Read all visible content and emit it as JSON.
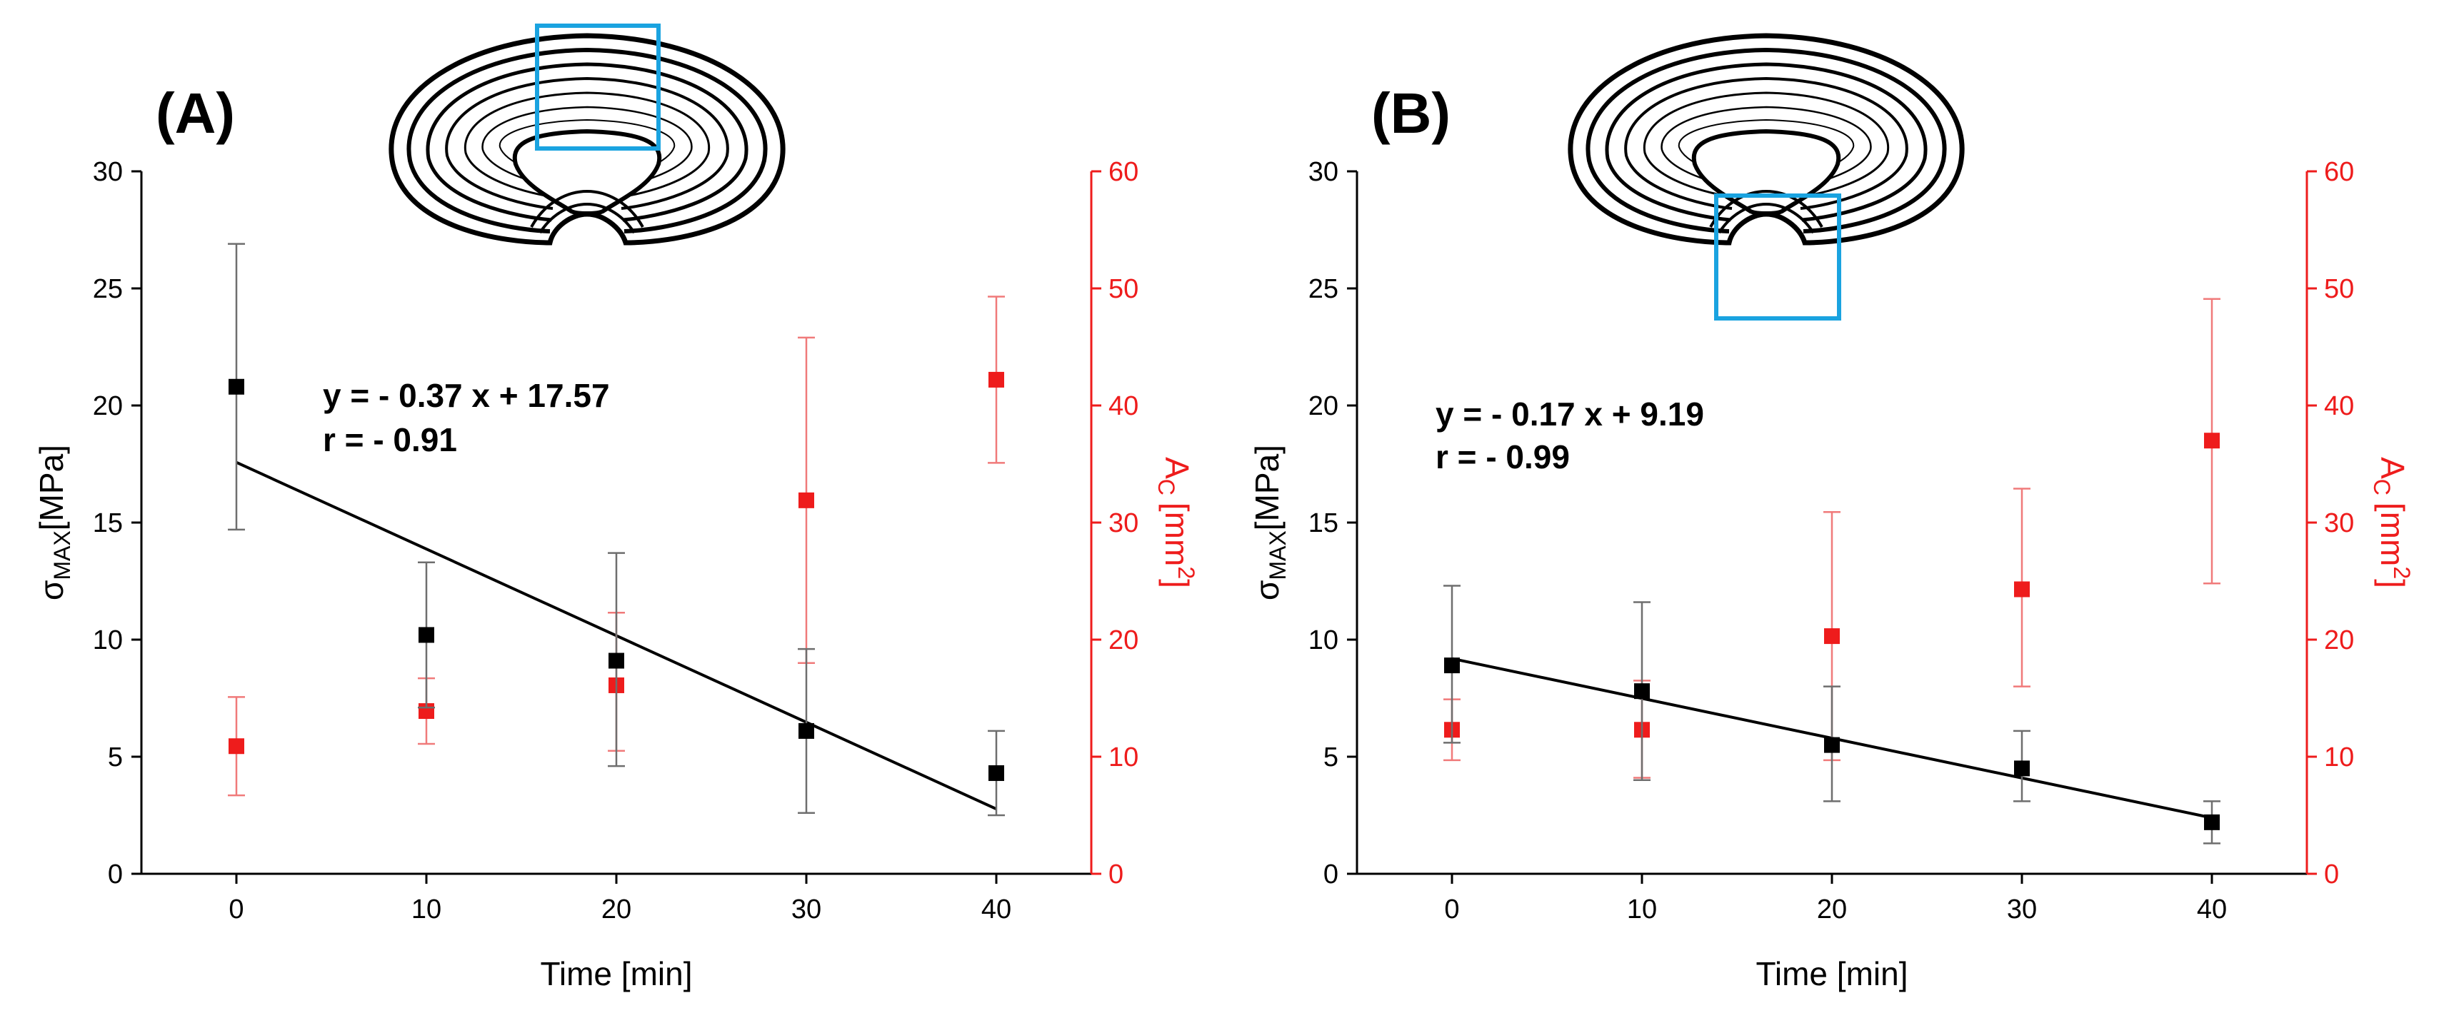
{
  "chart_data": [
    {
      "type": "scatter",
      "panel_label": "(A)",
      "xlabel": "Time [min]",
      "ylabel_main": "σ",
      "ylabel_sub": "MAX",
      "ylabel_unit": "[MPa]",
      "y2label_main": "A",
      "y2label_sub": "C",
      "y2label_unit": "[mm",
      "y2label_sup": "2",
      "y2label_close": "]",
      "xlim": [
        -5,
        45
      ],
      "ylim": [
        0,
        30
      ],
      "y2lim": [
        0,
        60
      ],
      "x_ticks": [
        0,
        10,
        20,
        30,
        40
      ],
      "y_ticks": [
        0,
        5,
        10,
        15,
        20,
        25,
        30
      ],
      "y2_ticks": [
        0,
        10,
        20,
        30,
        40,
        50,
        60
      ],
      "series": [
        {
          "name": "sigma_max",
          "axis": "left",
          "color": "#000000",
          "x": [
            0,
            10,
            20,
            30,
            40
          ],
          "y": [
            20.8,
            10.2,
            9.1,
            6.1,
            4.3
          ],
          "err_low": [
            14.7,
            7.1,
            4.6,
            2.6,
            2.5
          ],
          "err_high": [
            26.9,
            13.3,
            13.7,
            9.6,
            6.1
          ]
        },
        {
          "name": "A_c",
          "axis": "right",
          "color": "#ee1c1c",
          "x": [
            0,
            10,
            20,
            30,
            40
          ],
          "y": [
            10.9,
            13.9,
            16.1,
            31.9,
            42.2
          ],
          "err_low": [
            6.7,
            11.1,
            10.5,
            18.0,
            35.1
          ],
          "err_high": [
            15.1,
            16.7,
            22.3,
            45.8,
            49.3
          ]
        }
      ],
      "fit": {
        "slope": -0.37,
        "intercept": 17.57,
        "x_range": [
          0,
          40
        ]
      },
      "equation": "y = - 0.37 x + 17.57",
      "correlation": "r = - 0.91",
      "highlight_region": "top"
    },
    {
      "type": "scatter",
      "panel_label": "(B)",
      "xlabel": "Time [min]",
      "ylabel_main": "σ",
      "ylabel_sub": "MAX",
      "ylabel_unit": "[MPa]",
      "y2label_main": "A",
      "y2label_sub": "C",
      "y2label_unit": "[mm",
      "y2label_sup": "2",
      "y2label_close": "]",
      "xlim": [
        -5,
        45
      ],
      "ylim": [
        0,
        30
      ],
      "y2lim": [
        0,
        60
      ],
      "x_ticks": [
        0,
        10,
        20,
        30,
        40
      ],
      "y_ticks": [
        0,
        5,
        10,
        15,
        20,
        25,
        30
      ],
      "y2_ticks": [
        0,
        10,
        20,
        30,
        40,
        50,
        60
      ],
      "series": [
        {
          "name": "sigma_max",
          "axis": "left",
          "color": "#000000",
          "x": [
            0,
            10,
            20,
            30,
            40
          ],
          "y": [
            8.9,
            7.8,
            5.5,
            4.5,
            2.2
          ],
          "err_low": [
            5.6,
            4.0,
            3.1,
            3.1,
            1.3
          ],
          "err_high": [
            12.3,
            11.6,
            8.0,
            6.1,
            3.1
          ]
        },
        {
          "name": "A_c",
          "axis": "right",
          "color": "#ee1c1c",
          "x": [
            0,
            10,
            20,
            30,
            40
          ],
          "y": [
            12.3,
            12.3,
            20.3,
            24.3,
            37.0
          ],
          "err_low": [
            9.7,
            8.2,
            9.7,
            16.0,
            24.8
          ],
          "err_high": [
            14.9,
            16.5,
            30.9,
            32.9,
            49.1
          ]
        }
      ],
      "fit": {
        "slope": -0.17,
        "intercept": 9.19,
        "x_range": [
          0,
          40
        ]
      },
      "equation": "y = - 0.17 x + 9.19",
      "correlation": "r = - 0.99",
      "highlight_region": "bottom"
    }
  ]
}
